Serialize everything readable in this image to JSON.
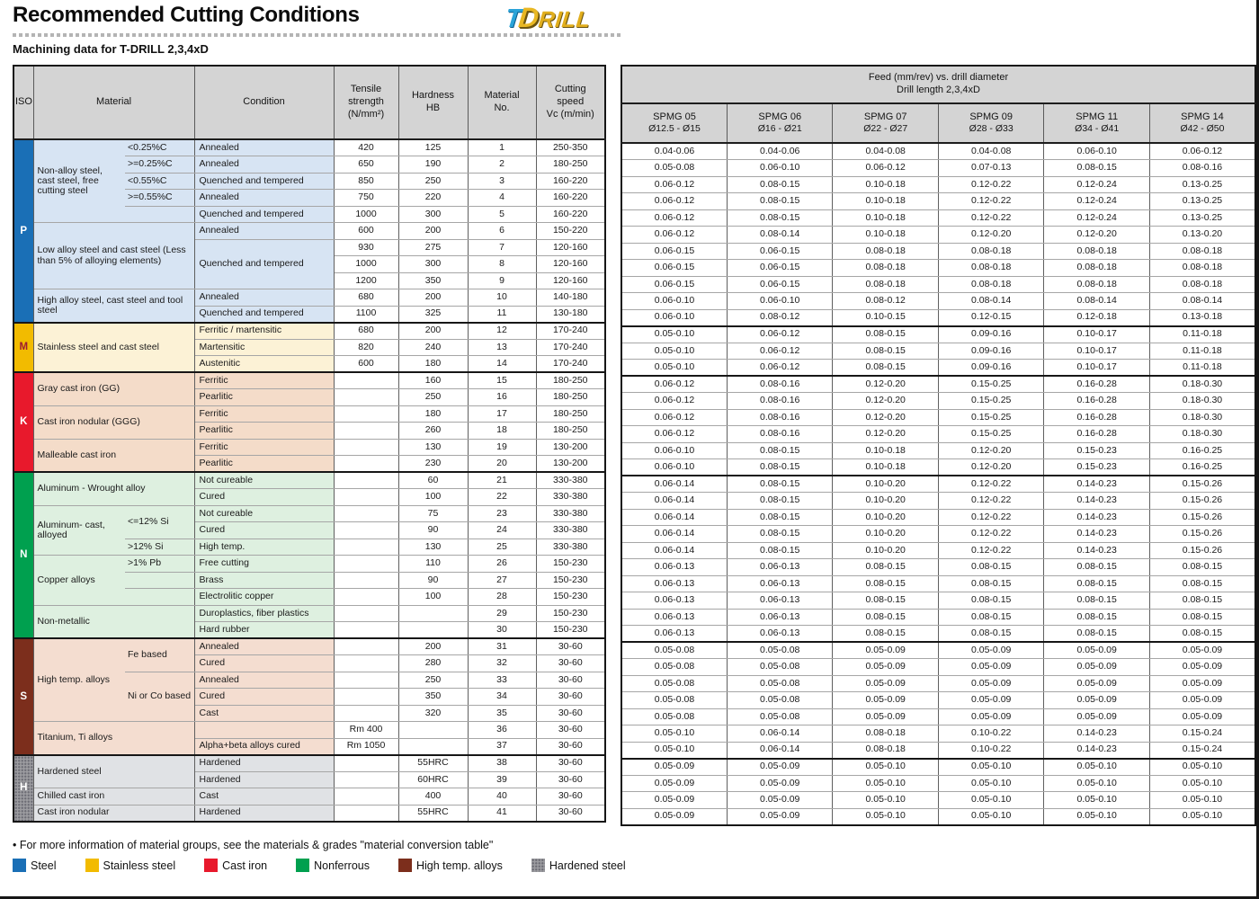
{
  "page": {
    "title": "Recommended Cutting Conditions",
    "subtitle": "Machining data for T-DRILL 2,3,4xD",
    "logo": {
      "t": "T",
      "d": "D",
      "rill": "RILL"
    },
    "footnote": "• For more information of material groups, see the materials & grades \"material conversion table\""
  },
  "left_table": {
    "headers": {
      "iso": "ISO",
      "material": "Material",
      "condition": "Condition",
      "tensile": "Tensile\nstrength\n(N/mm²)",
      "hardness": "Hardness\nHB",
      "material_no": "Material\nNo.",
      "cutting_speed": "Cutting\nspeed\nVc (m/min)"
    }
  },
  "right_table": {
    "header_line1": "Feed (mm/rev) vs. drill diameter",
    "header_line2": "Drill length 2,3,4xD",
    "columns": [
      {
        "name": "SPMG 05",
        "range": "Ø12.5 - Ø15"
      },
      {
        "name": "SPMG 06",
        "range": "Ø16 - Ø21"
      },
      {
        "name": "SPMG 07",
        "range": "Ø22 - Ø27"
      },
      {
        "name": "SPMG 09",
        "range": "Ø28 - Ø33"
      },
      {
        "name": "SPMG 11",
        "range": "Ø34 - Ø41"
      },
      {
        "name": "SPMG 14",
        "range": "Ø42 - Ø50"
      }
    ]
  },
  "sections": [
    {
      "letter": "P",
      "color": "#1a6fb6",
      "text": "#ffffff",
      "bg": "#d7e4f3"
    },
    {
      "letter": "M",
      "color": "#f2bb00",
      "text": "#9e1b32",
      "bg": "#fcf2d6"
    },
    {
      "letter": "K",
      "color": "#e8192c",
      "text": "#ffffff",
      "bg": "#f4dcc9"
    },
    {
      "letter": "N",
      "color": "#00a04f",
      "text": "#ffffff",
      "bg": "#def0e0"
    },
    {
      "letter": "S",
      "color": "#7c2e1c",
      "text": "#ffffff",
      "bg": "#f4ddd0"
    },
    {
      "letter": "H",
      "color": "#9c9ca0",
      "text": "#ffffff",
      "bg": "#e0e2e5"
    }
  ],
  "rows": [
    {
      "g": 0,
      "iso": 11,
      "mat": {
        "t": "Non-alloy steel, cast steel, free cutting steel",
        "s": 5,
        "c": 1
      },
      "spec": "<0.25%C",
      "cond": "Annealed",
      "ts": "420",
      "hb": "125",
      "no": "1",
      "vc": "250-350",
      "f": [
        "0.04-0.06",
        "0.04-0.06",
        "0.04-0.08",
        "0.04-0.08",
        "0.06-0.10",
        "0.06-0.12"
      ]
    },
    {
      "g": 0,
      "spec": ">=0.25%C",
      "cond": "Annealed",
      "ts": "650",
      "hb": "190",
      "no": "2",
      "vc": "180-250",
      "f": [
        "0.05-0.08",
        "0.06-0.10",
        "0.06-0.12",
        "0.07-0.13",
        "0.08-0.15",
        "0.08-0.16"
      ]
    },
    {
      "g": 0,
      "spec": "<0.55%C",
      "cond": "Quenched and tempered",
      "ts": "850",
      "hb": "250",
      "no": "3",
      "vc": "160-220",
      "f": [
        "0.06-0.12",
        "0.08-0.15",
        "0.10-0.18",
        "0.12-0.22",
        "0.12-0.24",
        "0.13-0.25"
      ]
    },
    {
      "g": 0,
      "spec": ">=0.55%C",
      "cond": "Annealed",
      "ts": "750",
      "hb": "220",
      "no": "4",
      "vc": "160-220",
      "f": [
        "0.06-0.12",
        "0.08-0.15",
        "0.10-0.18",
        "0.12-0.22",
        "0.12-0.24",
        "0.13-0.25"
      ]
    },
    {
      "g": 0,
      "spec": "",
      "cond": "Quenched and tempered",
      "ts": "1000",
      "hb": "300",
      "no": "5",
      "vc": "160-220",
      "f": [
        "0.06-0.12",
        "0.08-0.15",
        "0.10-0.18",
        "0.12-0.22",
        "0.12-0.24",
        "0.13-0.25"
      ]
    },
    {
      "g": 0,
      "mat": {
        "t": "Low alloy steel and cast steel (Less than 5% of alloying elements)",
        "s": 4,
        "c": 2
      },
      "cond": "Annealed",
      "ts": "600",
      "hb": "200",
      "no": "6",
      "vc": "150-220",
      "f": [
        "0.06-0.12",
        "0.08-0.14",
        "0.10-0.18",
        "0.12-0.20",
        "0.12-0.20",
        "0.13-0.20"
      ]
    },
    {
      "g": 0,
      "cond": {
        "t": "Quenched and tempered",
        "s": 3
      },
      "ts": "930",
      "hb": "275",
      "no": "7",
      "vc": "120-160",
      "f": [
        "0.06-0.15",
        "0.06-0.15",
        "0.08-0.18",
        "0.08-0.18",
        "0.08-0.18",
        "0.08-0.18"
      ]
    },
    {
      "g": 0,
      "ts": "1000",
      "hb": "300",
      "no": "8",
      "vc": "120-160",
      "f": [
        "0.06-0.15",
        "0.06-0.15",
        "0.08-0.18",
        "0.08-0.18",
        "0.08-0.18",
        "0.08-0.18"
      ]
    },
    {
      "g": 0,
      "ts": "1200",
      "hb": "350",
      "no": "9",
      "vc": "120-160",
      "f": [
        "0.06-0.15",
        "0.06-0.15",
        "0.08-0.18",
        "0.08-0.18",
        "0.08-0.18",
        "0.08-0.18"
      ]
    },
    {
      "g": 0,
      "mat": {
        "t": "High alloy steel, cast steel and tool steel",
        "s": 2,
        "c": 2
      },
      "cond": "Annealed",
      "ts": "680",
      "hb": "200",
      "no": "10",
      "vc": "140-180",
      "f": [
        "0.06-0.10",
        "0.06-0.10",
        "0.08-0.12",
        "0.08-0.14",
        "0.08-0.14",
        "0.08-0.14"
      ]
    },
    {
      "g": 0,
      "cond": "Quenched and tempered",
      "ts": "1100",
      "hb": "325",
      "no": "11",
      "vc": "130-180",
      "f": [
        "0.06-0.10",
        "0.08-0.12",
        "0.10-0.15",
        "0.12-0.15",
        "0.12-0.18",
        "0.13-0.18"
      ]
    },
    {
      "g": 1,
      "iso": 3,
      "mat": {
        "t": "Stainless steel and cast steel",
        "s": 3,
        "c": 2
      },
      "cond": "Ferritic / martensitic",
      "ts": "680",
      "hb": "200",
      "no": "12",
      "vc": "170-240",
      "f": [
        "0.05-0.10",
        "0.06-0.12",
        "0.08-0.15",
        "0.09-0.16",
        "0.10-0.17",
        "0.11-0.18"
      ]
    },
    {
      "g": 1,
      "cond": "Martensitic",
      "ts": "820",
      "hb": "240",
      "no": "13",
      "vc": "170-240",
      "f": [
        "0.05-0.10",
        "0.06-0.12",
        "0.08-0.15",
        "0.09-0.16",
        "0.10-0.17",
        "0.11-0.18"
      ]
    },
    {
      "g": 1,
      "cond": "Austenitic",
      "ts": "600",
      "hb": "180",
      "no": "14",
      "vc": "170-240",
      "f": [
        "0.05-0.10",
        "0.06-0.12",
        "0.08-0.15",
        "0.09-0.16",
        "0.10-0.17",
        "0.11-0.18"
      ]
    },
    {
      "g": 2,
      "iso": 6,
      "mat": {
        "t": "Gray cast iron (GG)",
        "s": 2,
        "c": 2
      },
      "cond": "Ferritic",
      "ts": "",
      "hb": "160",
      "no": "15",
      "vc": "180-250",
      "f": [
        "0.06-0.12",
        "0.08-0.16",
        "0.12-0.20",
        "0.15-0.25",
        "0.16-0.28",
        "0.18-0.30"
      ]
    },
    {
      "g": 2,
      "cond": "Pearlitic",
      "ts": "",
      "hb": "250",
      "no": "16",
      "vc": "180-250",
      "f": [
        "0.06-0.12",
        "0.08-0.16",
        "0.12-0.20",
        "0.15-0.25",
        "0.16-0.28",
        "0.18-0.30"
      ]
    },
    {
      "g": 2,
      "mat": {
        "t": "Cast iron nodular (GGG)",
        "s": 2,
        "c": 2
      },
      "cond": "Ferritic",
      "ts": "",
      "hb": "180",
      "no": "17",
      "vc": "180-250",
      "f": [
        "0.06-0.12",
        "0.08-0.16",
        "0.12-0.20",
        "0.15-0.25",
        "0.16-0.28",
        "0.18-0.30"
      ]
    },
    {
      "g": 2,
      "cond": "Pearlitic",
      "ts": "",
      "hb": "260",
      "no": "18",
      "vc": "180-250",
      "f": [
        "0.06-0.12",
        "0.08-0.16",
        "0.12-0.20",
        "0.15-0.25",
        "0.16-0.28",
        "0.18-0.30"
      ]
    },
    {
      "g": 2,
      "mat": {
        "t": "Malleable cast iron",
        "s": 2,
        "c": 2
      },
      "cond": "Ferritic",
      "ts": "",
      "hb": "130",
      "no": "19",
      "vc": "130-200",
      "f": [
        "0.06-0.10",
        "0.08-0.15",
        "0.10-0.18",
        "0.12-0.20",
        "0.15-0.23",
        "0.16-0.25"
      ]
    },
    {
      "g": 2,
      "cond": "Pearlitic",
      "ts": "",
      "hb": "230",
      "no": "20",
      "vc": "130-200",
      "f": [
        "0.06-0.10",
        "0.08-0.15",
        "0.10-0.18",
        "0.12-0.20",
        "0.15-0.23",
        "0.16-0.25"
      ]
    },
    {
      "g": 3,
      "iso": 10,
      "mat": {
        "t": "Aluminum - Wrought alloy",
        "s": 2,
        "c": 2
      },
      "cond": "Not cureable",
      "ts": "",
      "hb": "60",
      "no": "21",
      "vc": "330-380",
      "f": [
        "0.06-0.14",
        "0.08-0.15",
        "0.10-0.20",
        "0.12-0.22",
        "0.14-0.23",
        "0.15-0.26"
      ]
    },
    {
      "g": 3,
      "cond": "Cured",
      "ts": "",
      "hb": "100",
      "no": "22",
      "vc": "330-380",
      "f": [
        "0.06-0.14",
        "0.08-0.15",
        "0.10-0.20",
        "0.12-0.22",
        "0.14-0.23",
        "0.15-0.26"
      ]
    },
    {
      "g": 3,
      "mat": {
        "t": "Aluminum- cast, alloyed",
        "s": 3,
        "c": 1
      },
      "spec": {
        "t": "<=12% Si",
        "s": 2
      },
      "cond": "Not cureable",
      "ts": "",
      "hb": "75",
      "no": "23",
      "vc": "330-380",
      "f": [
        "0.06-0.14",
        "0.08-0.15",
        "0.10-0.20",
        "0.12-0.22",
        "0.14-0.23",
        "0.15-0.26"
      ]
    },
    {
      "g": 3,
      "cond": "Cured",
      "ts": "",
      "hb": "90",
      "no": "24",
      "vc": "330-380",
      "f": [
        "0.06-0.14",
        "0.08-0.15",
        "0.10-0.20",
        "0.12-0.22",
        "0.14-0.23",
        "0.15-0.26"
      ]
    },
    {
      "g": 3,
      "spec": ">12% Si",
      "cond": "High temp.",
      "ts": "",
      "hb": "130",
      "no": "25",
      "vc": "330-380",
      "f": [
        "0.06-0.14",
        "0.08-0.15",
        "0.10-0.20",
        "0.12-0.22",
        "0.14-0.23",
        "0.15-0.26"
      ]
    },
    {
      "g": 3,
      "mat": {
        "t": "Copper alloys",
        "s": 3,
        "c": 1
      },
      "spec": ">1% Pb",
      "cond": "Free cutting",
      "ts": "",
      "hb": "110",
      "no": "26",
      "vc": "150-230",
      "f": [
        "0.06-0.13",
        "0.06-0.13",
        "0.08-0.15",
        "0.08-0.15",
        "0.08-0.15",
        "0.08-0.15"
      ]
    },
    {
      "g": 3,
      "spec": "",
      "cond": "Brass",
      "ts": "",
      "hb": "90",
      "no": "27",
      "vc": "150-230",
      "f": [
        "0.06-0.13",
        "0.06-0.13",
        "0.08-0.15",
        "0.08-0.15",
        "0.08-0.15",
        "0.08-0.15"
      ]
    },
    {
      "g": 3,
      "spec": "",
      "cond": "Electrolitic copper",
      "ts": "",
      "hb": "100",
      "no": "28",
      "vc": "150-230",
      "f": [
        "0.06-0.13",
        "0.06-0.13",
        "0.08-0.15",
        "0.08-0.15",
        "0.08-0.15",
        "0.08-0.15"
      ]
    },
    {
      "g": 3,
      "mat": {
        "t": "Non-metallic",
        "s": 2,
        "c": 2
      },
      "cond": "Duroplastics, fiber plastics",
      "ts": "",
      "hb": "",
      "no": "29",
      "vc": "150-230",
      "f": [
        "0.06-0.13",
        "0.06-0.13",
        "0.08-0.15",
        "0.08-0.15",
        "0.08-0.15",
        "0.08-0.15"
      ]
    },
    {
      "g": 3,
      "cond": "Hard rubber",
      "ts": "",
      "hb": "",
      "no": "30",
      "vc": "150-230",
      "f": [
        "0.06-0.13",
        "0.06-0.13",
        "0.08-0.15",
        "0.08-0.15",
        "0.08-0.15",
        "0.08-0.15"
      ]
    },
    {
      "g": 4,
      "iso": 7,
      "mat": {
        "t": "High temp. alloys",
        "s": 5,
        "c": 1
      },
      "spec": {
        "t": "Fe based",
        "s": 2
      },
      "cond": "Annealed",
      "ts": "",
      "hb": "200",
      "no": "31",
      "vc": "30-60",
      "f": [
        "0.05-0.08",
        "0.05-0.08",
        "0.05-0.09",
        "0.05-0.09",
        "0.05-0.09",
        "0.05-0.09"
      ]
    },
    {
      "g": 4,
      "cond": "Cured",
      "ts": "",
      "hb": "280",
      "no": "32",
      "vc": "30-60",
      "f": [
        "0.05-0.08",
        "0.05-0.08",
        "0.05-0.09",
        "0.05-0.09",
        "0.05-0.09",
        "0.05-0.09"
      ]
    },
    {
      "g": 4,
      "spec": {
        "t": "Ni or Co based",
        "s": 3
      },
      "cond": "Annealed",
      "ts": "",
      "hb": "250",
      "no": "33",
      "vc": "30-60",
      "f": [
        "0.05-0.08",
        "0.05-0.08",
        "0.05-0.09",
        "0.05-0.09",
        "0.05-0.09",
        "0.05-0.09"
      ]
    },
    {
      "g": 4,
      "cond": "Cured",
      "ts": "",
      "hb": "350",
      "no": "34",
      "vc": "30-60",
      "f": [
        "0.05-0.08",
        "0.05-0.08",
        "0.05-0.09",
        "0.05-0.09",
        "0.05-0.09",
        "0.05-0.09"
      ]
    },
    {
      "g": 4,
      "cond": "Cast",
      "ts": "",
      "hb": "320",
      "no": "35",
      "vc": "30-60",
      "f": [
        "0.05-0.08",
        "0.05-0.08",
        "0.05-0.09",
        "0.05-0.09",
        "0.05-0.09",
        "0.05-0.09"
      ]
    },
    {
      "g": 4,
      "mat": {
        "t": "Titanium, Ti alloys",
        "s": 2,
        "c": 2
      },
      "cond": "",
      "ts": "Rm 400",
      "hb": "",
      "no": "36",
      "vc": "30-60",
      "f": [
        "0.05-0.10",
        "0.06-0.14",
        "0.08-0.18",
        "0.10-0.22",
        "0.14-0.23",
        "0.15-0.24"
      ]
    },
    {
      "g": 4,
      "cond": "Alpha+beta alloys cured",
      "ts": "Rm 1050",
      "hb": "",
      "no": "37",
      "vc": "30-60",
      "f": [
        "0.05-0.10",
        "0.06-0.14",
        "0.08-0.18",
        "0.10-0.22",
        "0.14-0.23",
        "0.15-0.24"
      ]
    },
    {
      "g": 5,
      "iso": 4,
      "mat": {
        "t": "Hardened steel",
        "s": 2,
        "c": 2
      },
      "cond": "Hardened",
      "ts": "",
      "hb": "55HRC",
      "no": "38",
      "vc": "30-60",
      "f": [
        "0.05-0.09",
        "0.05-0.09",
        "0.05-0.10",
        "0.05-0.10",
        "0.05-0.10",
        "0.05-0.10"
      ]
    },
    {
      "g": 5,
      "cond": "Hardened",
      "ts": "",
      "hb": "60HRC",
      "no": "39",
      "vc": "30-60",
      "f": [
        "0.05-0.09",
        "0.05-0.09",
        "0.05-0.10",
        "0.05-0.10",
        "0.05-0.10",
        "0.05-0.10"
      ]
    },
    {
      "g": 5,
      "mat": {
        "t": "Chilled cast iron",
        "s": 1,
        "c": 2
      },
      "cond": "Cast",
      "ts": "",
      "hb": "400",
      "no": "40",
      "vc": "30-60",
      "f": [
        "0.05-0.09",
        "0.05-0.09",
        "0.05-0.10",
        "0.05-0.10",
        "0.05-0.10",
        "0.05-0.10"
      ]
    },
    {
      "g": 5,
      "mat": {
        "t": "Cast iron nodular",
        "s": 1,
        "c": 2
      },
      "cond": "Hardened",
      "ts": "",
      "hb": "55HRC",
      "no": "41",
      "vc": "30-60",
      "f": [
        "0.05-0.09",
        "0.05-0.09",
        "0.05-0.10",
        "0.05-0.10",
        "0.05-0.10",
        "0.05-0.10"
      ]
    }
  ],
  "legend": [
    {
      "label": "Steel",
      "color": "#1a6fb6",
      "pattern": "solid"
    },
    {
      "label": "Stainless steel",
      "color": "#f2bb00",
      "pattern": "solid"
    },
    {
      "label": "Cast iron",
      "color": "#e8192c",
      "pattern": "solid"
    },
    {
      "label": "Nonferrous",
      "color": "#00a04f",
      "pattern": "solid"
    },
    {
      "label": "High temp. alloys",
      "color": "#7c2e1c",
      "pattern": "solid"
    },
    {
      "label": "Hardened steel",
      "color": "#9c9ca0",
      "pattern": "dots"
    }
  ]
}
